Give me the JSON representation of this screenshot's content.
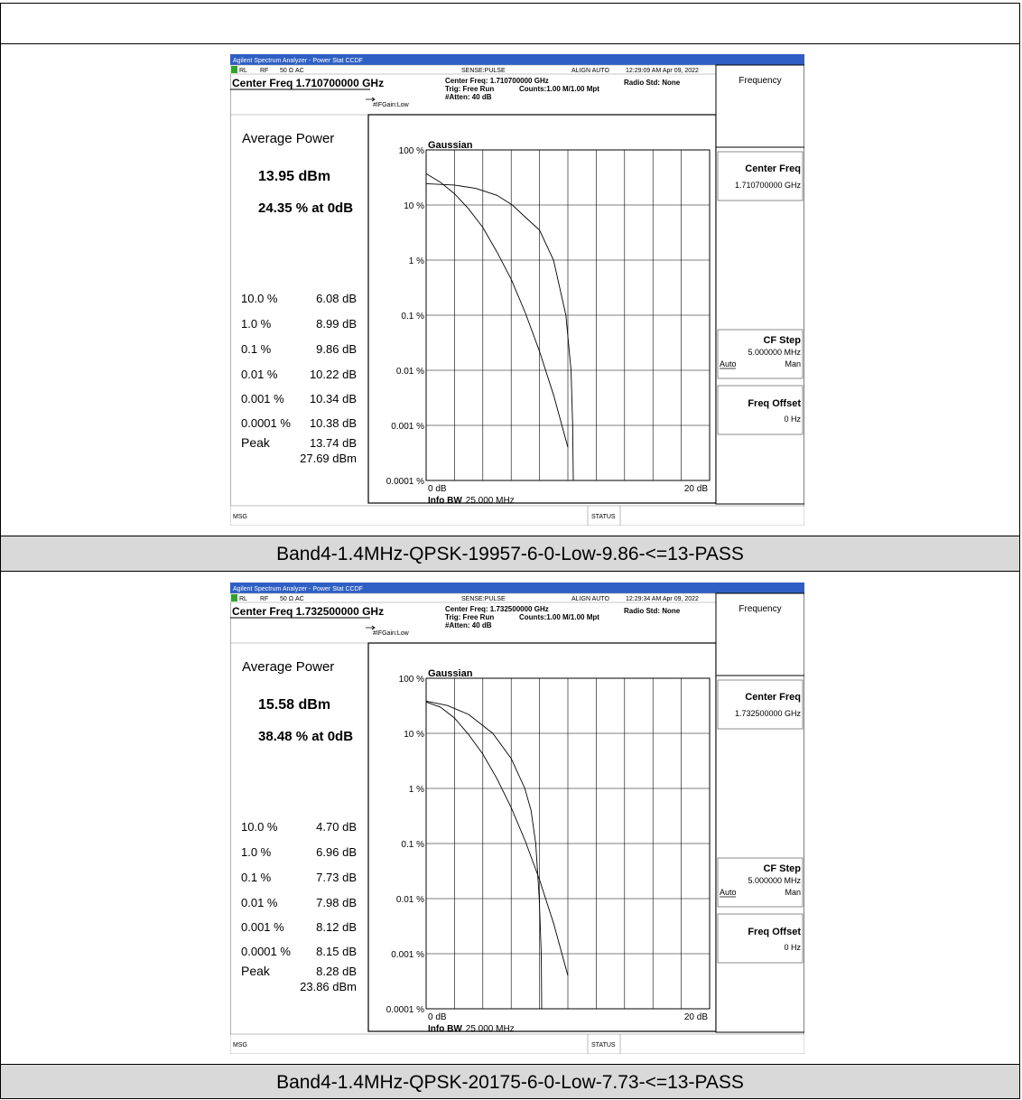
{
  "analyzers": [
    {
      "title_bar": "Agilent Spectrum Analyzer - Power Stat CCDF",
      "status_row": {
        "rl": "RL",
        "rf": "RF",
        "ohm": "50 Ω",
        "ac": "AC",
        "sense": "SENSE:PULSE",
        "align": "ALIGN AUTO",
        "timestamp": "12:29:09 AM Apr 09, 2022"
      },
      "center_freq_header": "Center Freq 1.710700000 GHz",
      "settings": {
        "center_freq": "Center Freq: 1.710700000 GHz",
        "trig": "Trig: Free Run",
        "counts": "Counts:1.00 M/1.00 Mpt",
        "atten": "#Atten: 40 dB",
        "ifgain": "#IFGain:Low",
        "radio_std": "Radio Std: None"
      },
      "avg_power_label": "Average Power",
      "avg_power_value": "13.95 dBm",
      "pct_at_0db": "24.35 % at 0dB",
      "stats": [
        {
          "pct": "10.0 %",
          "db": "6.08 dB"
        },
        {
          "pct": "1.0 %",
          "db": "8.99 dB"
        },
        {
          "pct": "0.1 %",
          "db": "9.86 dB"
        },
        {
          "pct": "0.01 %",
          "db": "10.22 dB"
        },
        {
          "pct": "0.001 %",
          "db": "10.34 dB"
        },
        {
          "pct": "0.0001 %",
          "db": "10.38 dB"
        }
      ],
      "peak_label": "Peak",
      "peak_db": "13.74 dB",
      "peak_dbm": "27.69 dBm",
      "chart_title": "Gaussian",
      "y_ticks": [
        "100 %",
        "10 %",
        "1 %",
        "0.1 %",
        "0.01 %",
        "0.001 %",
        "0.0001 %"
      ],
      "x_start": "0 dB",
      "x_end": "20 dB",
      "info_bw_label": "Info BW",
      "info_bw_value": "25.000 MHz",
      "softkeys": {
        "menu": "Frequency",
        "center_freq_label": "Center Freq",
        "center_freq_value": "1.710700000 GHz",
        "cf_step_label": "CF Step",
        "cf_step_value": "5.000000 MHz",
        "auto": "Auto",
        "man": "Man",
        "freq_offset_label": "Freq Offset",
        "freq_offset_value": "0 Hz"
      },
      "msg": "MSG",
      "status": "STATUS",
      "chart_data": {
        "type": "line",
        "title": "Gaussian",
        "x_unit": "dB",
        "xlim": [
          0,
          20
        ],
        "y_scale": "log",
        "ylim": [
          0.0001,
          100
        ],
        "grid": true,
        "series": [
          {
            "x": [
              0,
              1,
              2,
              3,
              4,
              5,
              6,
              7,
              8,
              9,
              10
            ],
            "y": [
              37,
              26,
              16,
              8.5,
              3.9,
              1.4,
              0.45,
              0.11,
              0.022,
              0.0035,
              0.0004
            ]
          },
          {
            "x": [
              0,
              2,
              3.5,
              5,
              6.08,
              7,
              8,
              8.99,
              9.86,
              10.22,
              10.34,
              10.38
            ],
            "y": [
              24.35,
              23,
              20,
              15,
              10,
              6,
              3.5,
              1.0,
              0.1,
              0.01,
              0.001,
              0.0001
            ]
          }
        ]
      }
    },
    {
      "title_bar": "Agilent Spectrum Analyzer - Power Stat CCDF",
      "status_row": {
        "rl": "RL",
        "rf": "RF",
        "ohm": "50 Ω",
        "ac": "AC",
        "sense": "SENSE:PULSE",
        "align": "ALIGN AUTO",
        "timestamp": "12:29:34 AM Apr 09, 2022"
      },
      "center_freq_header": "Center Freq 1.732500000 GHz",
      "settings": {
        "center_freq": "Center Freq: 1.732500000 GHz",
        "trig": "Trig: Free Run",
        "counts": "Counts:1.00 M/1.00 Mpt",
        "atten": "#Atten: 40 dB",
        "ifgain": "#IFGain:Low",
        "radio_std": "Radio Std: None"
      },
      "avg_power_label": "Average Power",
      "avg_power_value": "15.58 dBm",
      "pct_at_0db": "38.48 % at 0dB",
      "stats": [
        {
          "pct": "10.0 %",
          "db": "4.70 dB"
        },
        {
          "pct": "1.0 %",
          "db": "6.96 dB"
        },
        {
          "pct": "0.1 %",
          "db": "7.73 dB"
        },
        {
          "pct": "0.01 %",
          "db": "7.98 dB"
        },
        {
          "pct": "0.001 %",
          "db": "8.12 dB"
        },
        {
          "pct": "0.0001 %",
          "db": "8.15 dB"
        }
      ],
      "peak_label": "Peak",
      "peak_db": "8.28 dB",
      "peak_dbm": "23.86 dBm",
      "chart_title": "Gaussian",
      "y_ticks": [
        "100 %",
        "10 %",
        "1 %",
        "0.1 %",
        "0.01 %",
        "0.001 %",
        "0.0001 %"
      ],
      "x_start": "0 dB",
      "x_end": "20 dB",
      "info_bw_label": "Info BW",
      "info_bw_value": "25.000 MHz",
      "softkeys": {
        "menu": "Frequency",
        "center_freq_label": "Center Freq",
        "center_freq_value": "1.732500000 GHz",
        "cf_step_label": "CF Step",
        "cf_step_value": "5.000000 MHz",
        "auto": "Auto",
        "man": "Man",
        "freq_offset_label": "Freq Offset",
        "freq_offset_value": "0 Hz"
      },
      "msg": "MSG",
      "status": "STATUS",
      "chart_data": {
        "type": "line",
        "title": "Gaussian",
        "x_unit": "dB",
        "xlim": [
          0,
          20
        ],
        "y_scale": "log",
        "ylim": [
          0.0001,
          100
        ],
        "grid": true,
        "series": [
          {
            "x": [
              0,
              1,
              2,
              3,
              4,
              5,
              6,
              7,
              8,
              9,
              10
            ],
            "y": [
              37,
              30,
              19,
              9.5,
              4.2,
              1.5,
              0.45,
              0.11,
              0.022,
              0.0035,
              0.0004
            ]
          },
          {
            "x": [
              0,
              1.5,
              3,
              4.7,
              6,
              6.96,
              7.4,
              7.73,
              7.98,
              8.12,
              8.15
            ],
            "y": [
              38.48,
              32,
              22,
              10,
              3.5,
              1.0,
              0.4,
              0.1,
              0.01,
              0.001,
              0.0001
            ]
          }
        ]
      }
    }
  ],
  "captions": [
    "Band4-1.4MHz-QPSK-19957-6-0-Low-9.86-<=13-PASS",
    "Band4-1.4MHz-QPSK-20175-6-0-Low-7.73-<=13-PASS"
  ]
}
